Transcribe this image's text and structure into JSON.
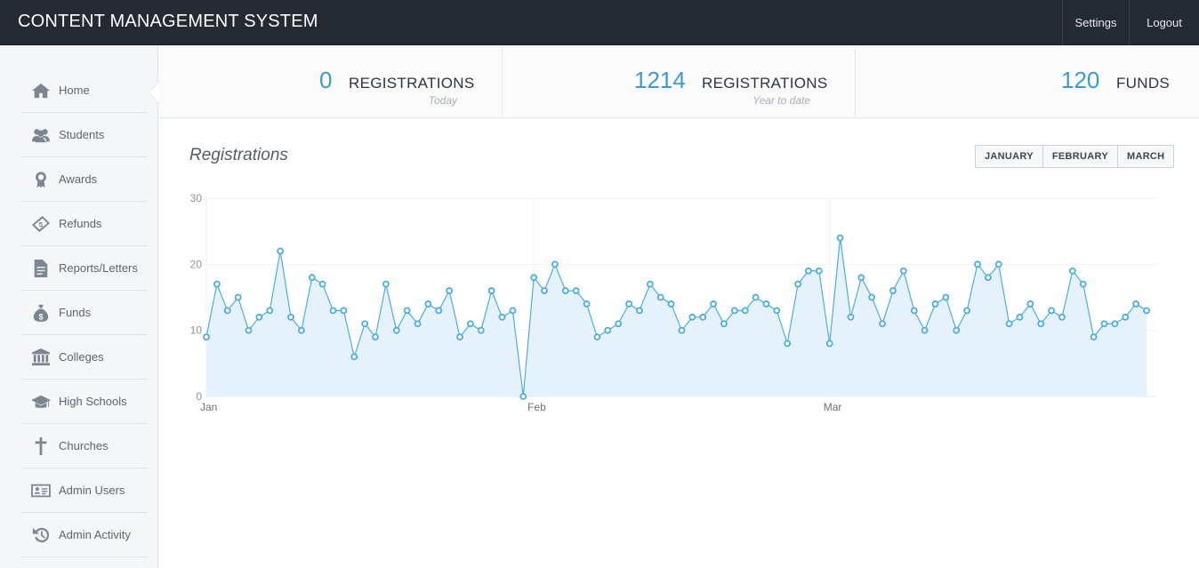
{
  "header": {
    "title": "CONTENT MANAGEMENT SYSTEM",
    "nav": [
      {
        "label": "Settings"
      },
      {
        "label": "Logout"
      }
    ]
  },
  "sidebar": {
    "items": [
      {
        "label": "Home",
        "icon": "home-icon"
      },
      {
        "label": "Students",
        "icon": "users-icon"
      },
      {
        "label": "Awards",
        "icon": "award-icon"
      },
      {
        "label": "Refunds",
        "icon": "ticket-icon"
      },
      {
        "label": "Reports/Letters",
        "icon": "document-icon"
      },
      {
        "label": "Funds",
        "icon": "money-bag-icon"
      },
      {
        "label": "Colleges",
        "icon": "institution-icon"
      },
      {
        "label": "High Schools",
        "icon": "graduation-cap-icon"
      },
      {
        "label": "Churches",
        "icon": "cross-icon"
      },
      {
        "label": "Admin Users",
        "icon": "id-card-icon"
      },
      {
        "label": "Admin Activity",
        "icon": "history-icon"
      }
    ]
  },
  "stats": [
    {
      "value": "0",
      "label": "REGISTRATIONS",
      "sub": "Today"
    },
    {
      "value": "1214",
      "label": "REGISTRATIONS",
      "sub": "Year to date"
    },
    {
      "value": "120",
      "label": "FUNDS",
      "sub": ""
    }
  ],
  "panel": {
    "title": "Registrations",
    "buttons": [
      {
        "label": "JANUARY"
      },
      {
        "label": "FEBRUARY"
      },
      {
        "label": "MARCH"
      }
    ]
  },
  "colors": {
    "accent": "#3a9ad9",
    "line": "#4aaee3",
    "fill": "#e5f2fb",
    "topbar": "#252a32"
  },
  "chart_data": {
    "type": "area",
    "title": "",
    "xlabel": "",
    "ylabel": "",
    "ylim": [
      0,
      30
    ],
    "yticks": [
      0,
      10,
      20,
      30
    ],
    "xticks": [
      {
        "label": "Jan",
        "day": 1
      },
      {
        "label": "Feb",
        "day": 32
      },
      {
        "label": "Mar",
        "day": 60
      }
    ],
    "x_unit": "day of year (Jan 1 = 1)",
    "series": [
      {
        "values": [
          9,
          17,
          13,
          15,
          10,
          12,
          13,
          22,
          12,
          10,
          18,
          17,
          13,
          13,
          6,
          11,
          9,
          17,
          10,
          13,
          11,
          14,
          13,
          16,
          9,
          11,
          10,
          16,
          12,
          13,
          0,
          18,
          16,
          20,
          16,
          16,
          14,
          9,
          10,
          11,
          14,
          13,
          17,
          15,
          14,
          10,
          12,
          12,
          14,
          11,
          13,
          13,
          15,
          14,
          13,
          8,
          17,
          19,
          19,
          8,
          24,
          12,
          18,
          15,
          11,
          16,
          19,
          13,
          10,
          14,
          15,
          10,
          13,
          20,
          18,
          20,
          11,
          12,
          14,
          11,
          13,
          12,
          19,
          17,
          9,
          11,
          11,
          12,
          14,
          13
        ]
      }
    ]
  }
}
